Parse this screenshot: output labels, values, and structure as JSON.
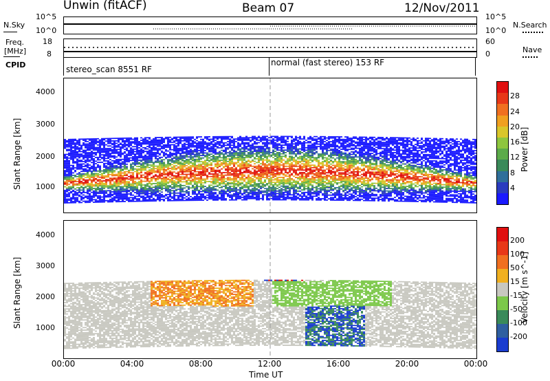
{
  "header": {
    "station": "Unwin (fitACF)",
    "beam": "Beam 07",
    "date": "12/Nov/2011"
  },
  "top_panels": {
    "nsky_label": "N.Sky",
    "nsky_ticks": [
      "10^5",
      "10^0"
    ],
    "nsearch_label": "N.Search",
    "freq_label": "Freq.",
    "freq_unit": "[MHz]",
    "freq_ticks": [
      "18",
      "8"
    ],
    "nave_label": "Nave",
    "nave_ticks": [
      "60",
      "0"
    ],
    "cpid_label": "CPID",
    "cpid_segments": [
      {
        "name": "stereo_scan 8551 RF",
        "from": 0,
        "to": 12
      },
      {
        "name": "normal (fast stereo) 153 RF",
        "from": 12,
        "to": 24
      }
    ]
  },
  "chart_data": [
    {
      "type": "heatmap",
      "title": "",
      "xlabel": "Time UT",
      "ylabel": "Slant Range [km]",
      "x_ticks": [
        "00:00",
        "04:00",
        "08:00",
        "12:00",
        "16:00",
        "20:00",
        "00:00"
      ],
      "xlim": [
        0,
        24
      ],
      "y_ticks": [
        1000,
        2000,
        3000,
        4000
      ],
      "ylim": [
        180,
        4500
      ],
      "colorbar": {
        "label": "Power [dB]",
        "ticks": [
          4,
          8,
          12,
          16,
          20,
          24,
          28
        ],
        "colors": [
          "#1a1aff",
          "#2a3cbf",
          "#2f6f9a",
          "#3a8a5a",
          "#5cab4a",
          "#8ec63f",
          "#d9c62a",
          "#f0a020",
          "#f07020",
          "#e83818",
          "#e01010"
        ]
      }
    },
    {
      "type": "heatmap",
      "title": "",
      "xlabel": "Time UT",
      "ylabel": "Slant Range [km]",
      "x_ticks": [
        "00:00",
        "04:00",
        "08:00",
        "12:00",
        "16:00",
        "20:00",
        "00:00"
      ],
      "xlim": [
        0,
        24
      ],
      "y_ticks": [
        1000,
        2000,
        3000,
        4000
      ],
      "ylim": [
        180,
        4500
      ],
      "colorbar": {
        "label": "Velocity [m s^-1]",
        "ticks": [
          200,
          100,
          50,
          15,
          -15,
          -50,
          -100,
          -200
        ],
        "colors": [
          "#1a3ccf",
          "#2f5fa0",
          "#3a8a5a",
          "#7cc84a",
          "#c8c8c0",
          "#f0b020",
          "#f07020",
          "#e83818",
          "#e01010"
        ]
      }
    }
  ]
}
